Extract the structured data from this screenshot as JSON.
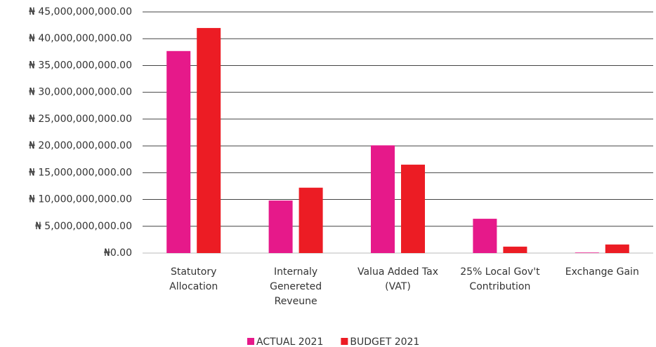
{
  "chart_data": {
    "type": "bar",
    "categories": [
      "Statutory Allocation",
      "Internaly Genereted Reveune",
      "Valua Added Tax (VAT)",
      "25% Local Gov't Contribution",
      "Exchange Gain"
    ],
    "series": [
      {
        "name": "ACTUAL 2021",
        "color": "#e6198a",
        "values": [
          37700000000,
          9800000000,
          20100000000,
          6400000000,
          100000000
        ]
      },
      {
        "name": "BUDGET 2021",
        "color": "#ec1c24",
        "values": [
          42000000000,
          12200000000,
          16500000000,
          1200000000,
          1600000000
        ]
      }
    ],
    "ylim": [
      0,
      45000000000
    ],
    "yticks": [
      {
        "value": 0,
        "label": "₦0.00"
      },
      {
        "value": 5000000000,
        "label": "₦ 5,000,000,000.00"
      },
      {
        "value": 10000000000,
        "label": "₦ 10,000,000,000.00"
      },
      {
        "value": 15000000000,
        "label": "₦ 15,000,000,000.00"
      },
      {
        "value": 20000000000,
        "label": "₦ 20,000,000,000.00"
      },
      {
        "value": 25000000000,
        "label": "₦ 25,000,000,000.00"
      },
      {
        "value": 30000000000,
        "label": "₦ 30,000,000,000.00"
      },
      {
        "value": 35000000000,
        "label": "₦ 35,000,000,000.00"
      },
      {
        "value": 40000000000,
        "label": "₦ 40,000,000,000.00"
      },
      {
        "value": 45000000000,
        "label": "₦ 45,000,000,000.00"
      }
    ],
    "grid": true,
    "legend": "bottom"
  }
}
